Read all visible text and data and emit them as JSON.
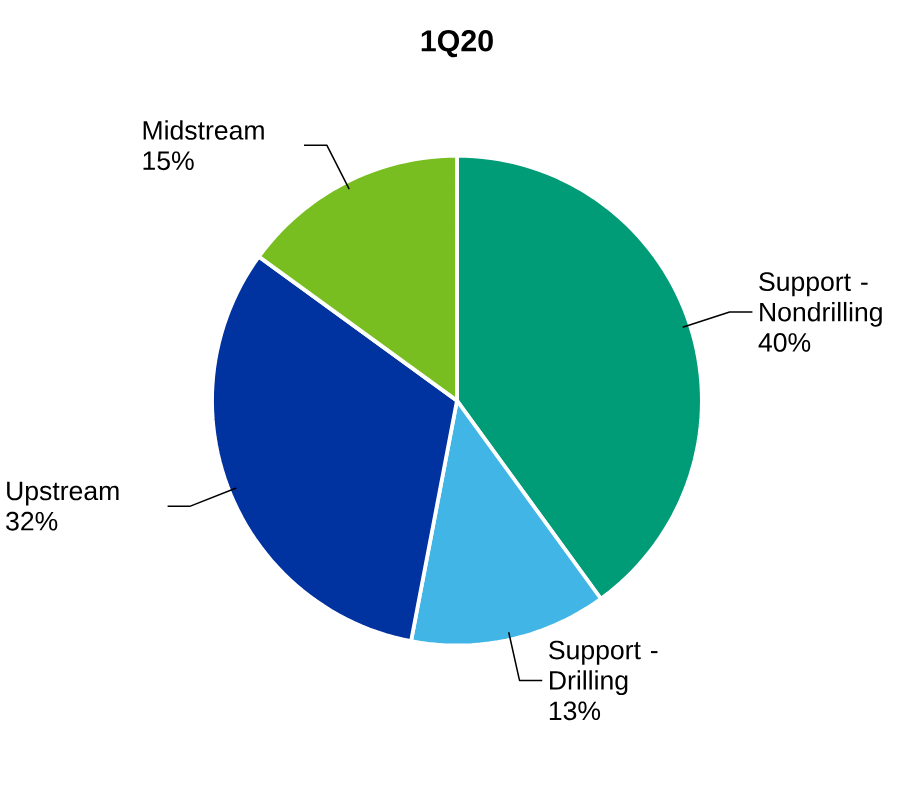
{
  "chart_data": {
    "type": "pie",
    "title": "1Q20",
    "categories": [
      "Support - Nondrilling",
      "Support - Drilling",
      "Upstream",
      "Midstream"
    ],
    "values": [
      40,
      13,
      32,
      15
    ],
    "value_labels": [
      "40%",
      "13%",
      "32%",
      "15%"
    ],
    "colors": [
      "#009b77",
      "#41b6e6",
      "#0032a0",
      "#78be21"
    ]
  }
}
